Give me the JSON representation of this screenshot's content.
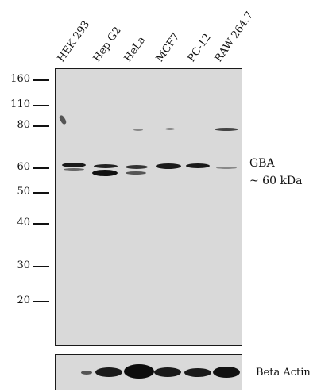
{
  "lanes": [
    "HEK 293",
    "Hep G2",
    "HeLa",
    "MCF7",
    "PC-12",
    "RAW 264.7"
  ],
  "mw_markers": [
    "160",
    "110",
    "80",
    "60",
    "50",
    "40",
    "30",
    "20"
  ],
  "target_label": "GBA",
  "target_size": "~ 60 kDa",
  "loading_control": "Beta Actin"
}
